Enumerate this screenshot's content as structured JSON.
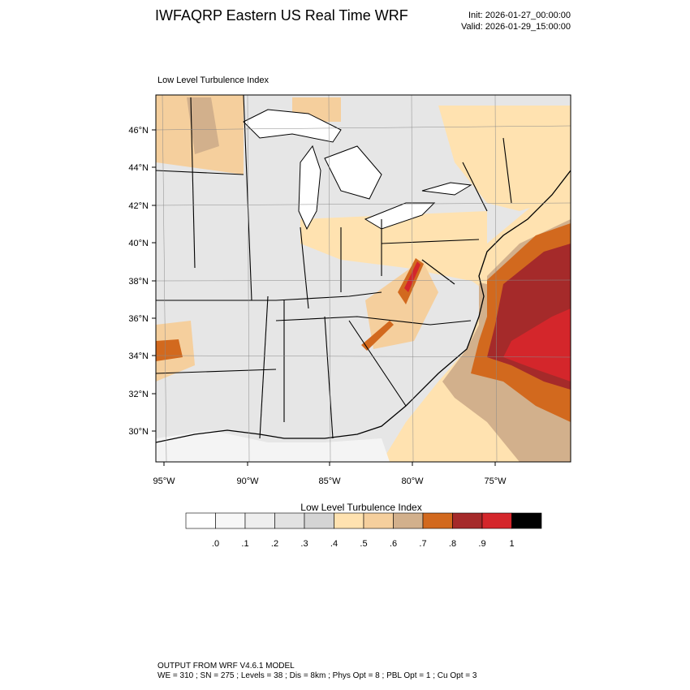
{
  "header": {
    "title": "IWFAQRP Eastern US Real Time WRF",
    "init": "Init: 2026-01-27_00:00:00",
    "valid": "Valid: 2026-01-29_15:00:00"
  },
  "map": {
    "title": "Low Level Turbulence Index",
    "lat_labels": [
      "46°N",
      "44°N",
      "42°N",
      "40°N",
      "38°N",
      "36°N",
      "34°N",
      "32°N",
      "30°N"
    ],
    "lon_labels": [
      "95°W",
      "90°W",
      "85°W",
      "80°W",
      "75°W"
    ]
  },
  "colorbar": {
    "title": "Low Level Turbulence Index",
    "labels": [
      ".0",
      ".1",
      ".2",
      ".3",
      ".4",
      ".5",
      ".6",
      ".7",
      ".8",
      ".9",
      "1"
    ],
    "colors": [
      "#ffffff",
      "#f7f7f7",
      "#eeeeee",
      "#e2e2e2",
      "#d4d4d4",
      "#ffe2b0",
      "#f5cf9d",
      "#d2b08c",
      "#d2691e",
      "#a52a2a",
      "#d4262b",
      "#000000"
    ]
  },
  "footer": {
    "line1": "OUTPUT FROM WRF V4.6.1 MODEL",
    "line2": "WE = 310 ; SN = 275 ; Levels = 38 ; Dis = 8km ; Phys Opt = 8 ; PBL Opt = 1 ; Cu Opt = 3"
  }
}
